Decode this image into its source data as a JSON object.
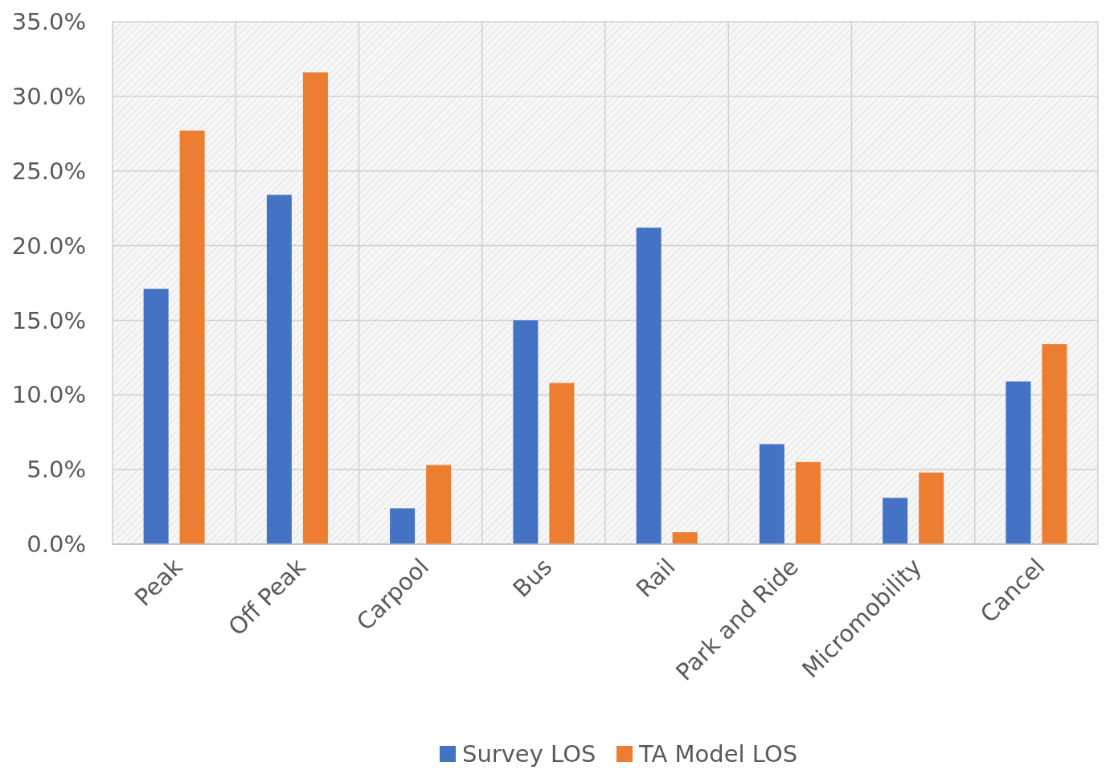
{
  "chart_data": {
    "type": "bar",
    "categories": [
      "Peak",
      "Off Peak",
      "Carpool",
      "Bus",
      "Rail",
      "Park and Ride",
      "Micromobility",
      "Cancel"
    ],
    "series": [
      {
        "name": "Survey LOS",
        "color": "#4472c4",
        "values": [
          17.1,
          23.4,
          2.4,
          15.0,
          21.2,
          6.7,
          3.1,
          10.9
        ]
      },
      {
        "name": "TA Model LOS",
        "color": "#ed7d31",
        "values": [
          27.7,
          31.6,
          5.3,
          10.8,
          0.8,
          5.5,
          4.8,
          13.4
        ]
      }
    ],
    "ylim": [
      0,
      35
    ],
    "yticks": [
      {
        "value": 0,
        "label": "0.0%"
      },
      {
        "value": 5,
        "label": "5.0%"
      },
      {
        "value": 10,
        "label": "10.0%"
      },
      {
        "value": 15,
        "label": "15.0%"
      },
      {
        "value": 20,
        "label": "20.0%"
      },
      {
        "value": 25,
        "label": "25.0%"
      },
      {
        "value": 30,
        "label": "30.0%"
      },
      {
        "value": 35,
        "label": "35.0%"
      }
    ],
    "grid": true,
    "legend": "bottom"
  }
}
